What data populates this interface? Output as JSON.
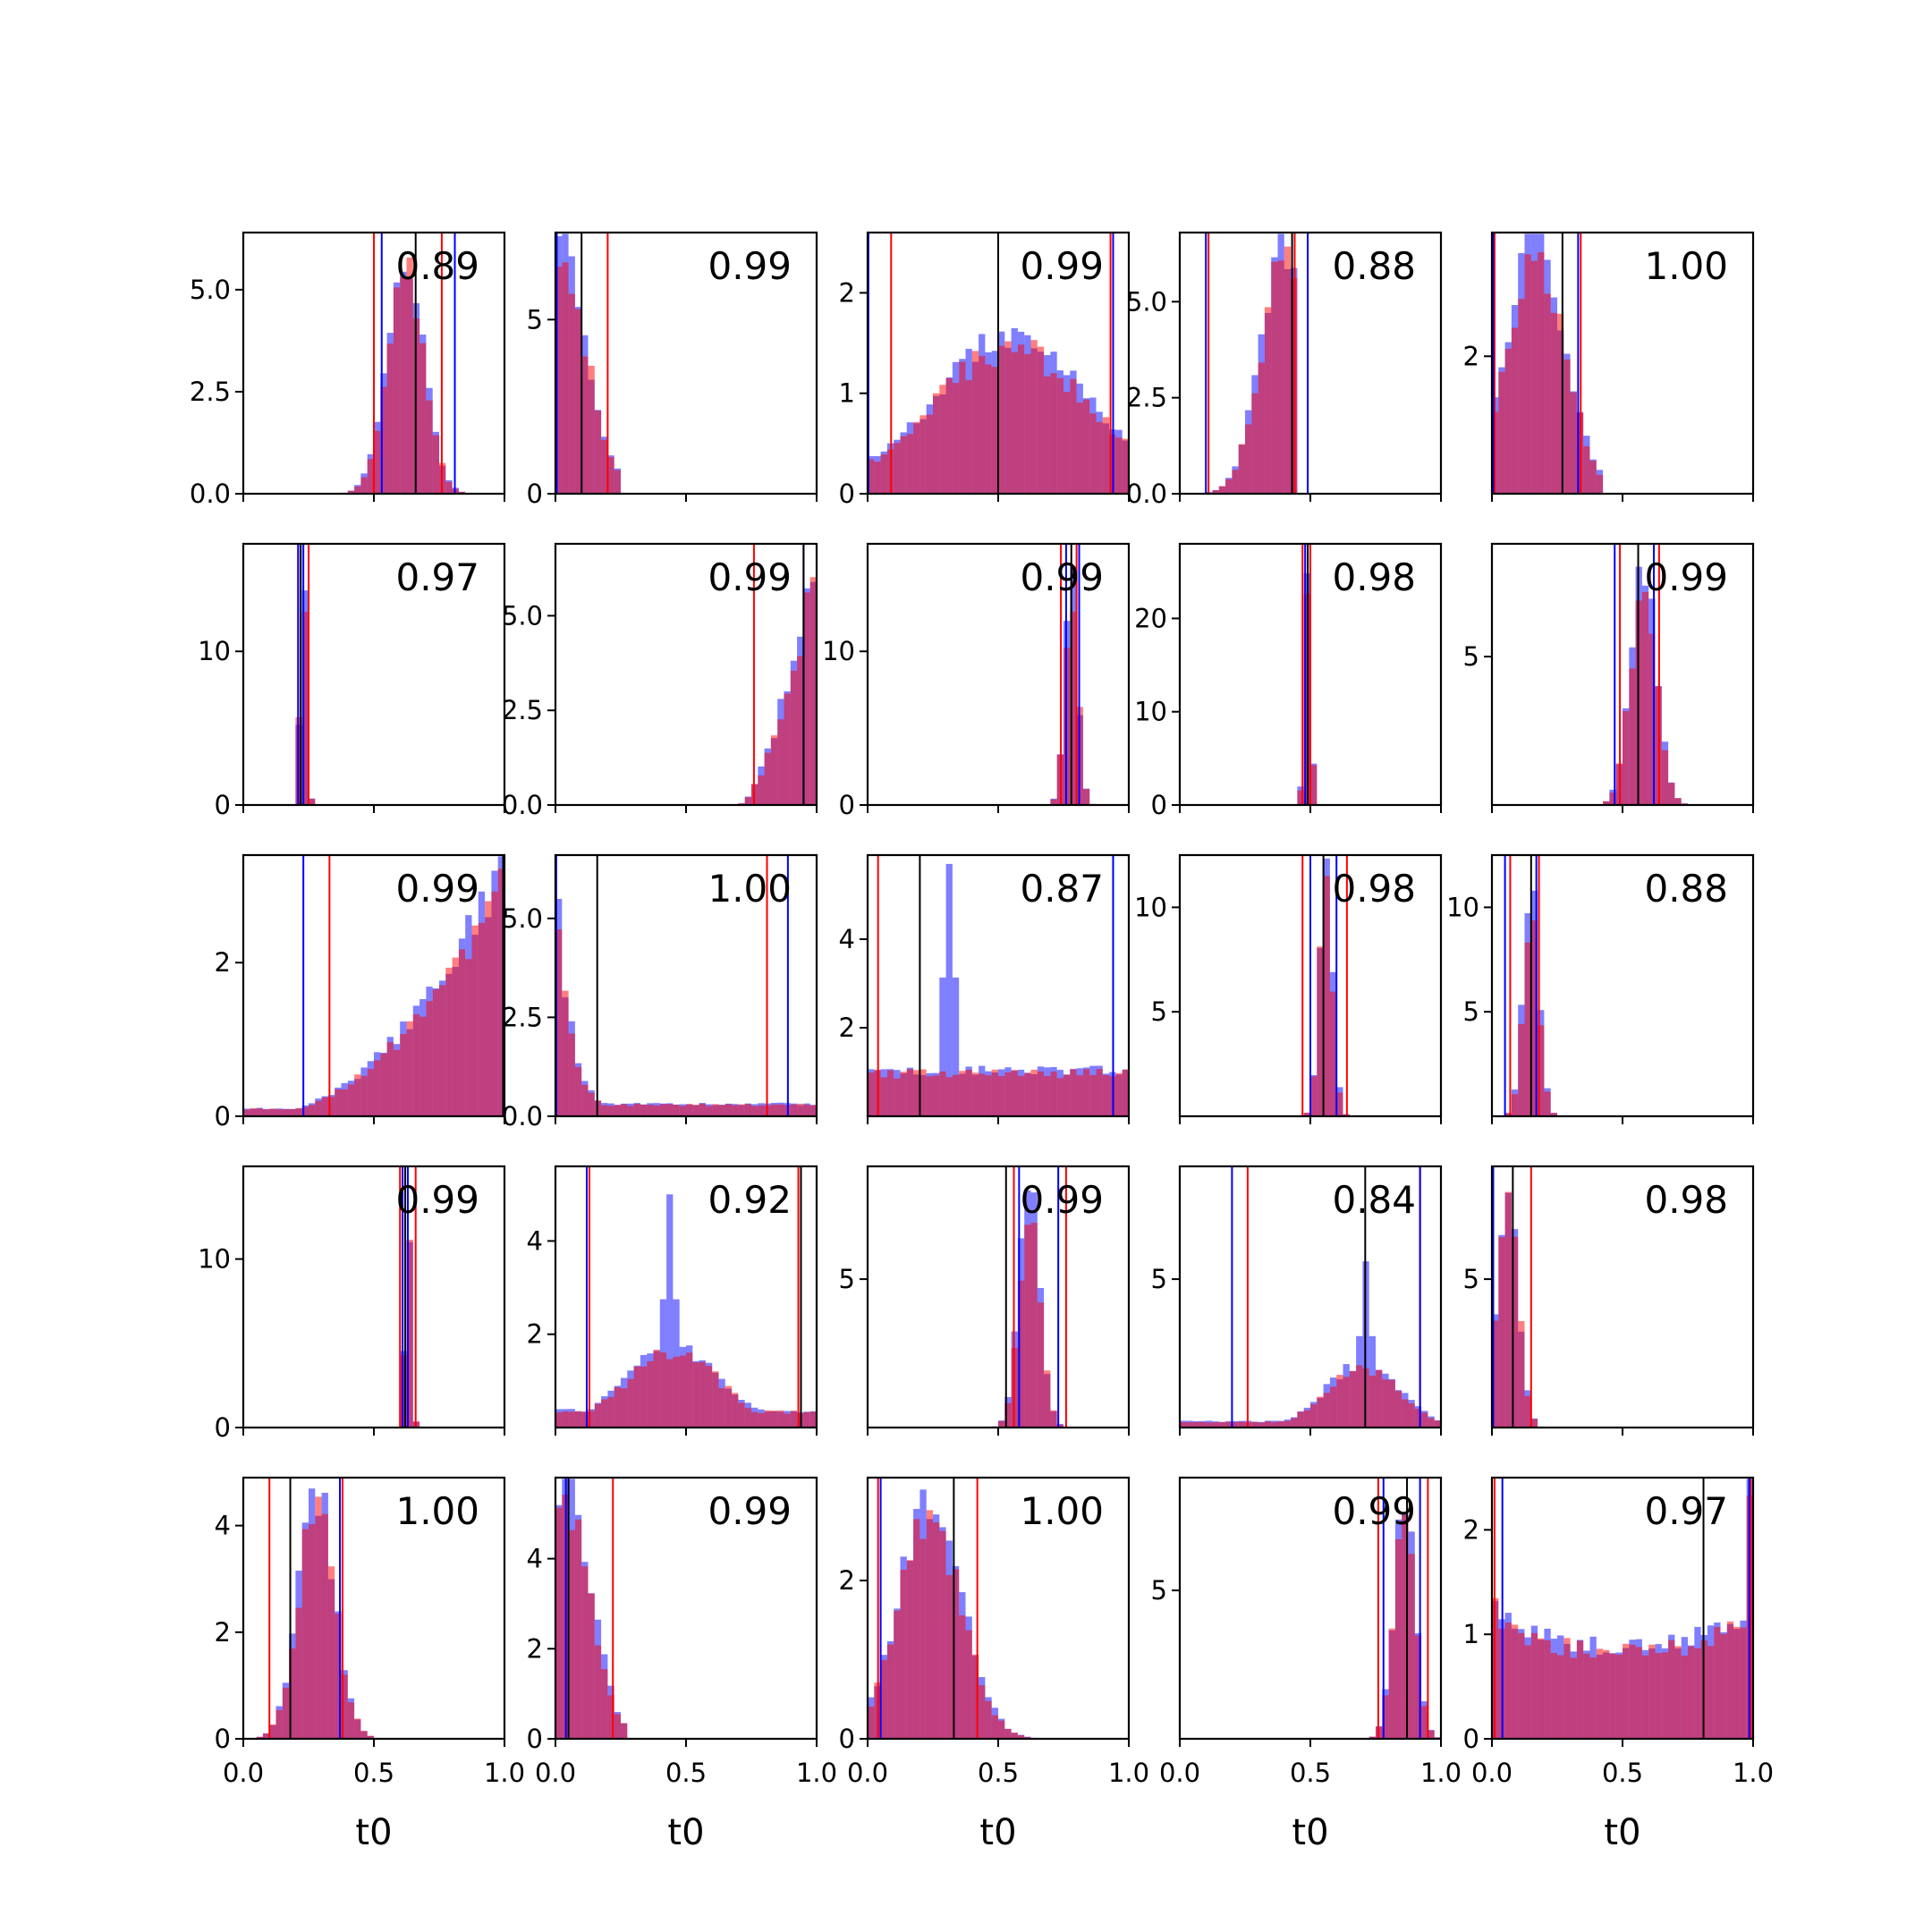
{
  "chart_data": {
    "type": "histogram-grid",
    "rows": 5,
    "cols": 5,
    "xlabel": "t0",
    "xlim": [
      0,
      1
    ],
    "xticks": [
      "0.0",
      "0.5",
      "1.0"
    ],
    "series_colors": {
      "blue": "#0000ff",
      "red": "#ff0000",
      "black": "#000000"
    },
    "panels": [
      {
        "row": 0,
        "col": 0,
        "label": "0.89",
        "ylim": [
          0,
          6.4
        ],
        "yticks": [
          "0.0",
          "2.5",
          "5.0"
        ],
        "ytick_values": [
          0,
          2.5,
          5
        ],
        "dist": {
          "type": "peak",
          "c": 0.62,
          "s": 0.07,
          "peak": 5.7
        },
        "red_lines": [
          0.5,
          0.76
        ],
        "blue_lines": [
          0.53,
          0.81
        ],
        "black_lines": [
          0.66
        ]
      },
      {
        "row": 0,
        "col": 1,
        "label": "0.99",
        "ylim": [
          0,
          7.5
        ],
        "yticks": [
          "0",
          "5"
        ],
        "ytick_values": [
          0,
          5
        ],
        "dist": {
          "type": "peak",
          "c": 0.02,
          "s": 0.1,
          "peak": 7.0,
          "cut": 0.26
        },
        "red_lines": [
          0.2
        ],
        "blue_lines": [
          0.005
        ],
        "black_lines": [
          0.1
        ]
      },
      {
        "row": 0,
        "col": 2,
        "label": "0.99",
        "ylim": [
          0,
          2.6
        ],
        "yticks": [
          "0",
          "1",
          "2"
        ],
        "ytick_values": [
          0,
          1,
          2
        ],
        "dist": {
          "type": "peak",
          "c": 0.55,
          "s": 0.3,
          "peak": 1.5,
          "floor": 0.35
        },
        "red_lines": [
          0.09,
          0.93
        ],
        "blue_lines": [
          0.003,
          0.94
        ],
        "black_lines": [
          0.5
        ]
      },
      {
        "row": 0,
        "col": 3,
        "label": "0.88",
        "ylim": [
          0,
          6.8
        ],
        "yticks": [
          "0.0",
          "2.5",
          "5.0"
        ],
        "ytick_values": [
          0,
          2.5,
          5
        ],
        "dist": {
          "type": "peak",
          "c": 0.4,
          "s": 0.09,
          "peak": 6.2,
          "cut": 0.45
        },
        "red_lines": [
          0.11,
          0.44
        ],
        "blue_lines": [
          0.1,
          0.49
        ],
        "black_lines": [
          0.43
        ]
      },
      {
        "row": 0,
        "col": 4,
        "label": "1.00",
        "ylim": [
          0,
          3.8
        ],
        "yticks": [
          "2"
        ],
        "ytick_values": [
          2
        ],
        "dist": {
          "type": "peak",
          "c": 0.17,
          "s": 0.11,
          "peak": 3.6,
          "cut": 0.42
        },
        "red_lines": [
          0.01,
          0.34
        ],
        "blue_lines": [
          0.005,
          0.33
        ],
        "black_lines": [
          0.27
        ]
      },
      {
        "row": 1,
        "col": 0,
        "label": "0.97",
        "ylim": [
          0,
          17
        ],
        "yticks": [
          "0",
          "10"
        ],
        "ytick_values": [
          0,
          10
        ],
        "dist": {
          "type": "peak",
          "c": 0.23,
          "s": 0.012,
          "peak": 15.5
        },
        "red_lines": [
          0.21,
          0.25
        ],
        "blue_lines": [
          0.21,
          0.23
        ],
        "black_lines": [
          0.22
        ]
      },
      {
        "row": 1,
        "col": 1,
        "label": "0.99",
        "ylim": [
          0,
          6.9
        ],
        "yticks": [
          "0.0",
          "2.5",
          "5.0"
        ],
        "ytick_values": [
          0,
          2.5,
          5
        ],
        "dist": {
          "type": "rise",
          "start": 0.7,
          "end": 1.0,
          "peak": 6.6
        },
        "red_lines": [
          0.76
        ],
        "blue_lines": [
          0.95
        ],
        "black_lines": [
          0.95
        ]
      },
      {
        "row": 1,
        "col": 2,
        "label": "0.99",
        "ylim": [
          0,
          17
        ],
        "yticks": [
          "0",
          "10"
        ],
        "ytick_values": [
          0,
          10
        ],
        "dist": {
          "type": "peak",
          "c": 0.78,
          "s": 0.025,
          "peak": 14.5
        },
        "red_lines": [
          0.74,
          0.8
        ],
        "blue_lines": [
          0.76,
          0.81
        ],
        "black_lines": [
          0.78
        ]
      },
      {
        "row": 1,
        "col": 3,
        "label": "0.98",
        "ylim": [
          0,
          28
        ],
        "yticks": [
          "0",
          "10",
          "20"
        ],
        "ytick_values": [
          0,
          10,
          20
        ],
        "dist": {
          "type": "peak",
          "c": 0.49,
          "s": 0.012,
          "peak": 25
        },
        "red_lines": [
          0.47,
          0.5
        ],
        "blue_lines": [
          0.48,
          0.49
        ],
        "black_lines": [
          0.49
        ]
      },
      {
        "row": 1,
        "col": 4,
        "label": "0.99",
        "ylim": [
          0,
          8.8
        ],
        "yticks": [
          "5"
        ],
        "ytick_values": [
          5
        ],
        "dist": {
          "type": "peak",
          "c": 0.58,
          "s": 0.05,
          "peak": 7.5
        },
        "red_lines": [
          0.49,
          0.64
        ],
        "blue_lines": [
          0.47,
          0.62
        ],
        "black_lines": [
          0.56
        ]
      },
      {
        "row": 2,
        "col": 0,
        "label": "0.99",
        "ylim": [
          0,
          3.4
        ],
        "yticks": [
          "0",
          "2"
        ],
        "ytick_values": [
          0,
          2
        ],
        "dist": {
          "type": "rise",
          "start": 0.0,
          "end": 1.0,
          "peak": 3.2,
          "floor": 0.1,
          "power": 2.2
        },
        "red_lines": [
          0.33
        ],
        "blue_lines": [
          0.23,
          0.995
        ],
        "black_lines": [
          0.995
        ]
      },
      {
        "row": 2,
        "col": 1,
        "label": "1.00",
        "ylim": [
          0,
          6.6
        ],
        "yticks": [
          "0.0",
          "2.5",
          "5.0"
        ],
        "ytick_values": [
          0,
          2.5,
          5
        ],
        "dist": {
          "type": "decay",
          "peak": 6.0,
          "rate": 0.06,
          "floor": 0.3
        },
        "red_lines": [
          0.81
        ],
        "blue_lines": [
          0.003,
          0.89
        ],
        "black_lines": [
          0.16
        ]
      },
      {
        "row": 2,
        "col": 2,
        "label": "0.87",
        "ylim": [
          0,
          5.9
        ],
        "yticks": [
          "2",
          "4"
        ],
        "ytick_values": [
          2,
          4
        ],
        "dist": {
          "type": "flat",
          "level": 1.0
        },
        "spike": {
          "x": 0.32,
          "h": 5.7
        },
        "red_lines": [
          0.04,
          0.94
        ],
        "blue_lines": [
          0.94
        ],
        "black_lines": [
          0.2
        ]
      },
      {
        "row": 2,
        "col": 3,
        "label": "0.98",
        "ylim": [
          0,
          12.5
        ],
        "yticks": [
          "5",
          "10"
        ],
        "ytick_values": [
          5,
          10
        ],
        "dist": {
          "type": "peak",
          "c": 0.56,
          "s": 0.025,
          "peak": 11.5
        },
        "red_lines": [
          0.47,
          0.64
        ],
        "blue_lines": [
          0.5,
          0.6
        ],
        "black_lines": [
          0.55
        ]
      },
      {
        "row": 2,
        "col": 4,
        "label": "0.88",
        "ylim": [
          0,
          12.5
        ],
        "yticks": [
          "5",
          "10"
        ],
        "ytick_values": [
          5,
          10
        ],
        "dist": {
          "type": "peak",
          "c": 0.15,
          "s": 0.03,
          "peak": 10.5
        },
        "red_lines": [
          0.07,
          0.18
        ],
        "blue_lines": [
          0.05,
          0.17
        ],
        "black_lines": [
          0.15
        ]
      },
      {
        "row": 3,
        "col": 0,
        "label": "0.99",
        "ylim": [
          0,
          15.5
        ],
        "yticks": [
          "0",
          "10"
        ],
        "ytick_values": [
          0,
          10
        ],
        "dist": {
          "type": "peak",
          "c": 0.63,
          "s": 0.012,
          "peak": 14
        },
        "red_lines": [
          0.6,
          0.66
        ],
        "blue_lines": [
          0.61,
          0.63
        ],
        "black_lines": [
          0.62
        ]
      },
      {
        "row": 3,
        "col": 1,
        "label": "0.92",
        "ylim": [
          0,
          5.6
        ],
        "yticks": [
          "2",
          "4"
        ],
        "ytick_values": [
          2,
          4
        ],
        "dist": {
          "type": "peak",
          "c": 0.45,
          "s": 0.18,
          "peak": 1.7,
          "floor": 0.35
        },
        "spike": {
          "x": 0.44,
          "h": 5.0
        },
        "red_lines": [
          0.13,
          0.93
        ],
        "blue_lines": [
          0.12,
          0.94
        ],
        "black_lines": [
          0.94
        ]
      },
      {
        "row": 3,
        "col": 2,
        "label": "0.99",
        "ylim": [
          0,
          8.8
        ],
        "yticks": [
          "5"
        ],
        "ytick_values": [
          5
        ],
        "dist": {
          "type": "peak",
          "c": 0.62,
          "s": 0.04,
          "peak": 8.0
        },
        "red_lines": [
          0.56,
          0.76
        ],
        "blue_lines": [
          0.58,
          0.73
        ],
        "black_lines": [
          0.53
        ]
      },
      {
        "row": 3,
        "col": 3,
        "label": "0.84",
        "ylim": [
          0,
          8.8
        ],
        "yticks": [
          "5"
        ],
        "ytick_values": [
          5
        ],
        "dist": {
          "type": "peak",
          "c": 0.7,
          "s": 0.14,
          "peak": 2.1,
          "floor": 0.2
        },
        "spike": {
          "x": 0.72,
          "h": 5.6
        },
        "red_lines": [
          0.26,
          0.92
        ],
        "blue_lines": [
          0.2,
          0.92
        ],
        "black_lines": [
          0.71
        ]
      },
      {
        "row": 3,
        "col": 4,
        "label": "0.98",
        "ylim": [
          0,
          8.8
        ],
        "yticks": [
          "5"
        ],
        "ytick_values": [
          5
        ],
        "dist": {
          "type": "peak",
          "c": 0.06,
          "s": 0.04,
          "peak": 8.0,
          "cut": 0.18
        },
        "red_lines": [
          0.15
        ],
        "blue_lines": [
          0.005
        ],
        "black_lines": [
          0.08
        ]
      },
      {
        "row": 4,
        "col": 0,
        "label": "1.00",
        "ylim": [
          0,
          4.9
        ],
        "yticks": [
          "0",
          "2",
          "4"
        ],
        "ytick_values": [
          0,
          2,
          4
        ],
        "dist": {
          "type": "peak",
          "c": 0.28,
          "s": 0.07,
          "peak": 4.5
        },
        "red_lines": [
          0.1,
          0.38
        ],
        "blue_lines": [
          0.37
        ],
        "black_lines": [
          0.18
        ]
      },
      {
        "row": 4,
        "col": 1,
        "label": "0.99",
        "ylim": [
          0,
          5.8
        ],
        "yticks": [
          "0",
          "2",
          "4"
        ],
        "ytick_values": [
          0,
          2,
          4
        ],
        "dist": {
          "type": "peak",
          "c": 0.05,
          "s": 0.09,
          "peak": 5.3,
          "cut": 0.28
        },
        "red_lines": [
          0.22
        ],
        "blue_lines": [
          0.04
        ],
        "black_lines": [
          0.05
        ]
      },
      {
        "row": 4,
        "col": 2,
        "label": "1.00",
        "ylim": [
          0,
          3.3
        ],
        "yticks": [
          "0",
          "2"
        ],
        "ytick_values": [
          0,
          2
        ],
        "dist": {
          "type": "peak",
          "c": 0.24,
          "s": 0.12,
          "peak": 2.9
        },
        "red_lines": [
          0.04,
          0.42
        ],
        "blue_lines": [
          0.05
        ],
        "black_lines": [
          0.33
        ]
      },
      {
        "row": 4,
        "col": 3,
        "label": "0.99",
        "ylim": [
          0,
          8.8
        ],
        "yticks": [
          "5"
        ],
        "ytick_values": [
          5
        ],
        "dist": {
          "type": "peak",
          "c": 0.86,
          "s": 0.04,
          "peak": 7.8
        },
        "red_lines": [
          0.76,
          0.95
        ],
        "blue_lines": [
          0.78,
          0.92
        ],
        "black_lines": [
          0.87
        ]
      },
      {
        "row": 4,
        "col": 4,
        "label": "0.97",
        "ylim": [
          0,
          2.5
        ],
        "yticks": [
          "0",
          "1",
          "2"
        ],
        "ytick_values": [
          0,
          1,
          2
        ],
        "dist": {
          "type": "ushape",
          "level": 0.85,
          "edge": 1.3,
          "right_edge": 2.4
        },
        "red_lines": [
          0.01,
          0.99
        ],
        "blue_lines": [
          0.04,
          0.985
        ],
        "black_lines": [
          0.81
        ]
      }
    ]
  }
}
